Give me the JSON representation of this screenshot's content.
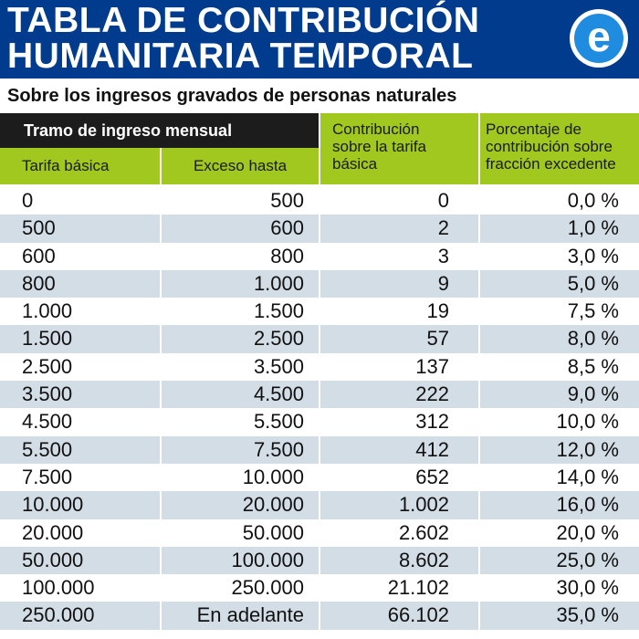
{
  "banner": {
    "title_line1": "TABLA DE CONTRIBUCIÓN",
    "title_line2": "HUMANITARIA TEMPORAL",
    "logo_letter": "e",
    "bg_color": "#003b8e"
  },
  "subtitle": "Sobre los ingresos gravados de personas naturales",
  "header": {
    "group": "Tramo de ingreso mensual",
    "col1": "Tarifa básica",
    "col2": "Exceso hasta",
    "col3_lines": [
      "Contribución",
      "sobre la tarifa",
      "básica"
    ],
    "col4_lines": [
      "Porcentaje de",
      "contribución sobre",
      "fracción excedente"
    ],
    "accent_color": "#a0c81e"
  },
  "rows": [
    [
      "0",
      "500",
      "0",
      "0,0 %"
    ],
    [
      "500",
      "600",
      "2",
      "1,0 %"
    ],
    [
      "600",
      "800",
      "3",
      "3,0 %"
    ],
    [
      "800",
      "1.000",
      "9",
      "5,0 %"
    ],
    [
      "1.000",
      "1.500",
      "19",
      "7,5 %"
    ],
    [
      "1.500",
      "2.500",
      "57",
      "8,0 %"
    ],
    [
      "2.500",
      "3.500",
      "137",
      "8,5 %"
    ],
    [
      "3.500",
      "4.500",
      "222",
      "9,0 %"
    ],
    [
      "4.500",
      "5.500",
      "312",
      "10,0 %"
    ],
    [
      "5.500",
      "7.500",
      "412",
      "12,0 %"
    ],
    [
      "7.500",
      "10.000",
      "652",
      "14,0 %"
    ],
    [
      "10.000",
      "20.000",
      "1.002",
      "16,0 %"
    ],
    [
      "20.000",
      "50.000",
      "2.602",
      "20,0 %"
    ],
    [
      "50.000",
      "100.000",
      "8.602",
      "25,0 %"
    ],
    [
      "100.000",
      "250.000",
      "21.102",
      "30,0 %"
    ],
    [
      "250.000",
      "En adelante",
      "66.102",
      "35,0 %"
    ]
  ]
}
